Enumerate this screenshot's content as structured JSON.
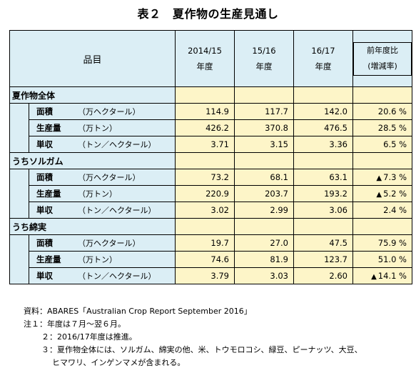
{
  "title": "表２　夏作物の生産見通し",
  "header": {
    "item": "品目",
    "years": [
      {
        "line1": "2014/15",
        "line2": "年度"
      },
      {
        "line1": "15/16",
        "line2": "年度"
      },
      {
        "line1": "16/17",
        "line2": "年度"
      }
    ],
    "yoy": {
      "line1": "前年度比",
      "line2": "(増減率)"
    }
  },
  "groups": [
    {
      "name": "夏作物全体",
      "rows": [
        {
          "item": "面積",
          "unit": "（万ヘクタール）",
          "v1": "114.9",
          "v2": "117.7",
          "v3": "142.0",
          "yoy": "20.6 %",
          "neg": false
        },
        {
          "item": "生産量",
          "unit": "（万トン）",
          "v1": "426.2",
          "v2": "370.8",
          "v3": "476.5",
          "yoy": "28.5 %",
          "neg": false
        },
        {
          "item": "単収",
          "unit": "（トン／ヘクタール）",
          "v1": "3.71",
          "v2": "3.15",
          "v3": "3.36",
          "yoy": "6.5 %",
          "neg": false
        }
      ]
    },
    {
      "name": "うちソルガム",
      "rows": [
        {
          "item": "面積",
          "unit": "（万ヘクタール）",
          "v1": "73.2",
          "v2": "68.1",
          "v3": "63.1",
          "yoy": "7.3 %",
          "neg": true
        },
        {
          "item": "生産量",
          "unit": "（万トン）",
          "v1": "220.9",
          "v2": "203.7",
          "v3": "193.2",
          "yoy": "5.2 %",
          "neg": true
        },
        {
          "item": "単収",
          "unit": "（トン／ヘクタール）",
          "v1": "3.02",
          "v2": "2.99",
          "v3": "3.06",
          "yoy": "2.4 %",
          "neg": false
        }
      ]
    },
    {
      "name": "うち綿実",
      "rows": [
        {
          "item": "面積",
          "unit": "（万ヘクタール）",
          "v1": "19.7",
          "v2": "27.0",
          "v3": "47.5",
          "yoy": "75.9 %",
          "neg": false
        },
        {
          "item": "生産量",
          "unit": "（万トン）",
          "v1": "74.6",
          "v2": "81.9",
          "v3": "123.7",
          "yoy": "51.0 %",
          "neg": false
        },
        {
          "item": "単収",
          "unit": "（トン／ヘクタール）",
          "v1": "3.79",
          "v2": "3.03",
          "v3": "2.60",
          "yoy": "14.1 %",
          "neg": true
        }
      ]
    }
  ],
  "triangle": "▲",
  "notes": {
    "source": "資料：ABARES「Australian Crop Report September 2016」",
    "note1": "注１：年度は７月～翌６月。",
    "note2": "２：2016/17年度は推進。",
    "note3a": "３：夏作物全体には、ソルガム、綿実の他、米、トウモロコシ、緑豆、ピーナッツ、大豆、",
    "note3b": "ヒマワリ、インゲンマメが含まれる。"
  }
}
